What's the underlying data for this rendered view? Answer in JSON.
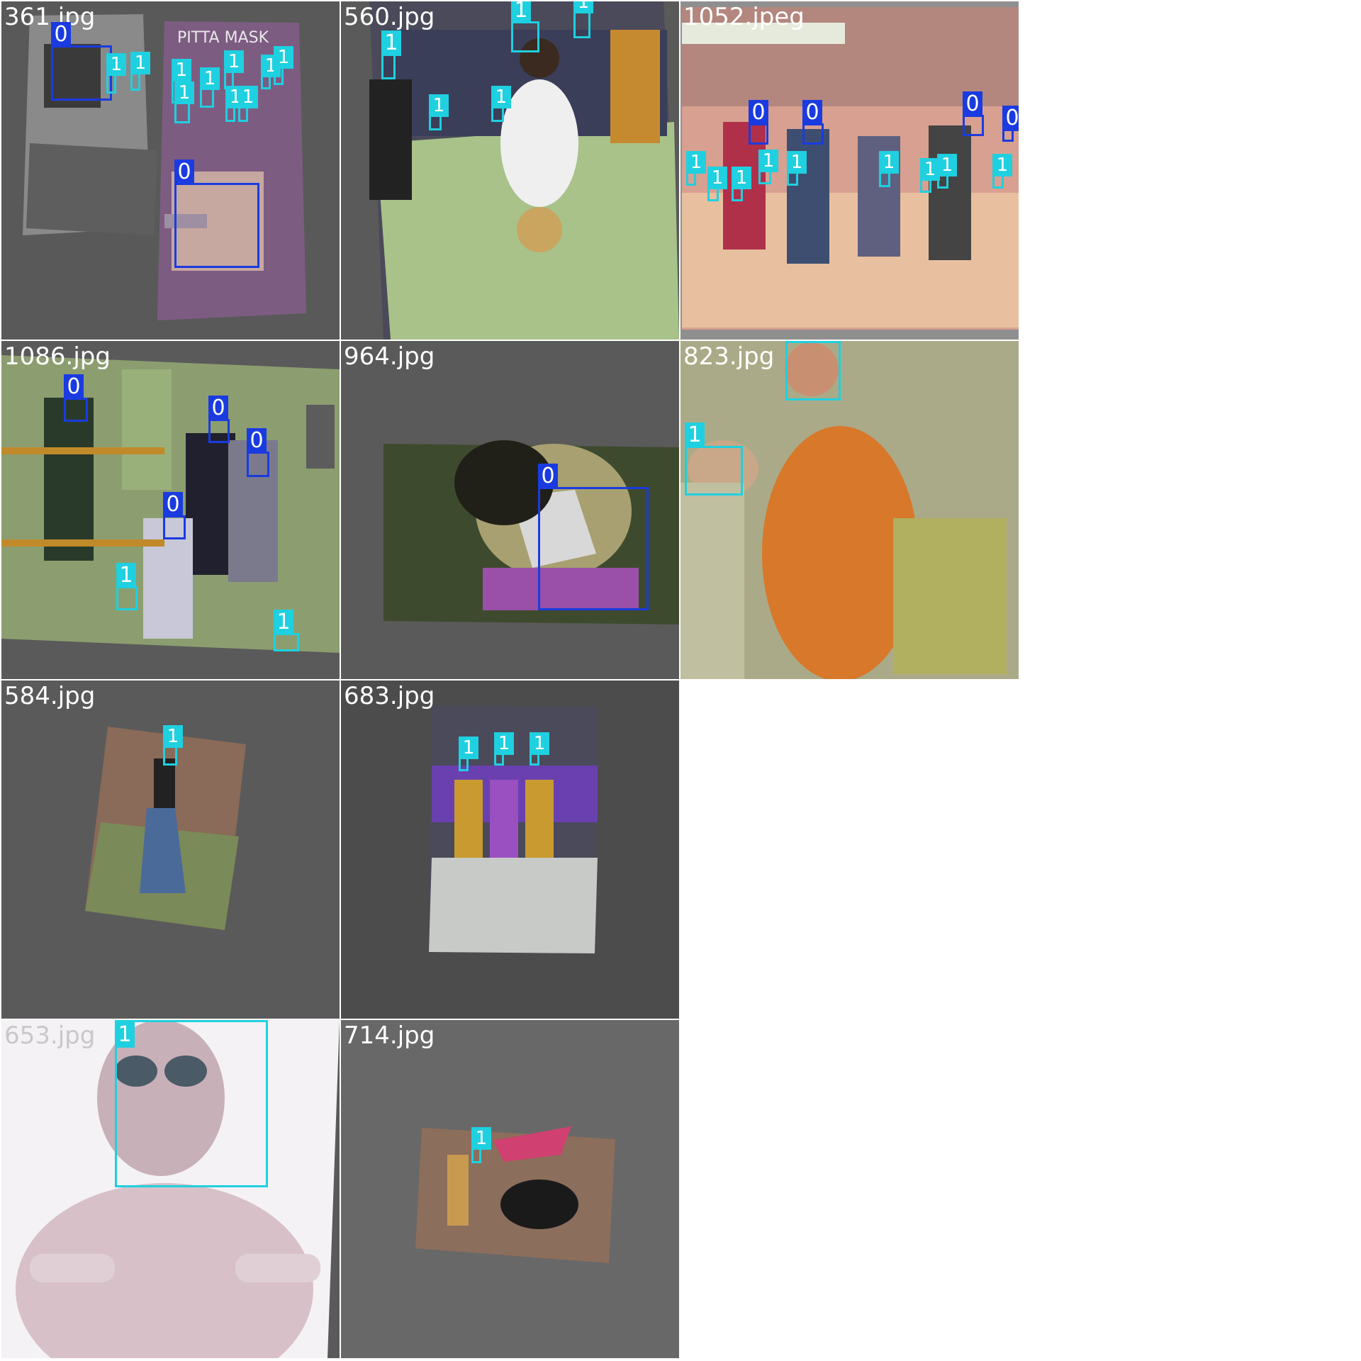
{
  "colors": {
    "class0": "#1a3be0",
    "class1": "#1fd0e0",
    "background": "#5a5a5a"
  },
  "tiles": [
    {
      "name": "361.jpg",
      "boxes": [
        "0",
        "1",
        "1",
        "1",
        "1",
        "1",
        "1",
        "1",
        "1",
        "1",
        "1",
        "0"
      ]
    },
    {
      "name": "560.jpg",
      "boxes": [
        "1",
        "1",
        "1",
        "1",
        "1"
      ]
    },
    {
      "name": "1052.jpeg",
      "boxes": [
        "0",
        "0",
        "0",
        "0",
        "1",
        "1",
        "1",
        "1",
        "1",
        "1",
        "1",
        "1",
        "1"
      ]
    },
    {
      "name": "1086.jpg",
      "boxes": [
        "0",
        "0",
        "0",
        "0",
        "1",
        "1"
      ]
    },
    {
      "name": "964.jpg",
      "boxes": [
        "0"
      ]
    },
    {
      "name": "823.jpg",
      "boxes": [
        "1",
        "1"
      ]
    },
    {
      "name": "584.jpg",
      "boxes": [
        "1"
      ]
    },
    {
      "name": "683.jpg",
      "boxes": [
        "1",
        "1",
        "1"
      ]
    },
    {
      "name": "653.jpg",
      "boxes": [
        "1"
      ]
    },
    {
      "name": "714.jpg",
      "boxes": [
        "1"
      ]
    }
  ]
}
